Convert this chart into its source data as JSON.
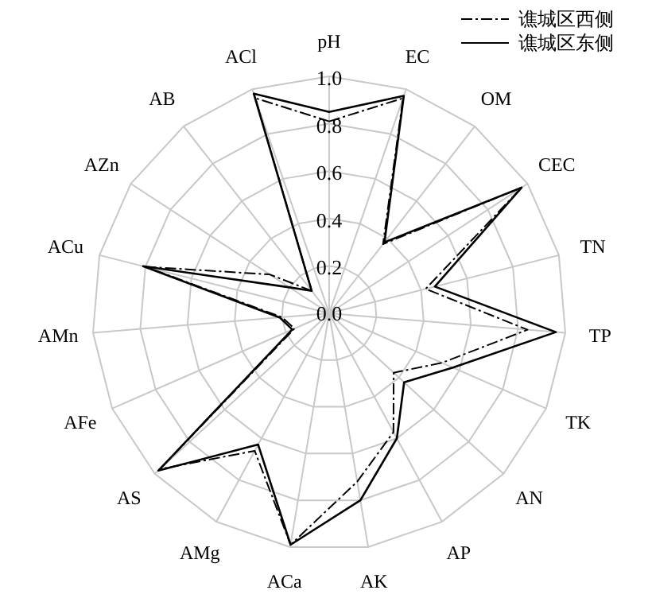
{
  "chart_data": {
    "type": "radar",
    "categories": [
      "pH",
      "EC",
      "OM",
      "CEC",
      "TN",
      "TP",
      "TK",
      "AN",
      "AP",
      "AK",
      "ACa",
      "AMg",
      "AS",
      "AFe",
      "AMn",
      "ACu",
      "AZn",
      "AB",
      "ACl"
    ],
    "series": [
      {
        "name": "谯城区西侧",
        "color": "#000000",
        "line_style": "dashed",
        "values": [
          0.81,
          0.96,
          0.37,
          0.97,
          0.42,
          0.84,
          0.52,
          0.37,
          0.57,
          0.72,
          0.99,
          0.66,
          0.97,
          0.16,
          0.2,
          0.8,
          0.3,
          0.12,
          0.96
        ]
      },
      {
        "name": "谯城区东侧",
        "color": "#000000",
        "line_style": "solid",
        "values": [
          0.85,
          0.97,
          0.38,
          0.97,
          0.46,
          0.96,
          0.57,
          0.43,
          0.6,
          0.8,
          0.99,
          0.63,
          0.98,
          0.17,
          0.21,
          0.81,
          0.2,
          0.12,
          0.98
        ]
      }
    ],
    "ylim": [
      0,
      1
    ],
    "yticks": [
      {
        "value": 0,
        "label": "0.0"
      },
      {
        "value": 0.2,
        "label": "0.2"
      },
      {
        "value": 0.4,
        "label": "0.4"
      },
      {
        "value": 0.6,
        "label": "0.6"
      },
      {
        "value": 0.8,
        "label": "0.8"
      },
      {
        "value": 1,
        "label": "1.0"
      }
    ],
    "grid": true,
    "legend": "top right"
  }
}
